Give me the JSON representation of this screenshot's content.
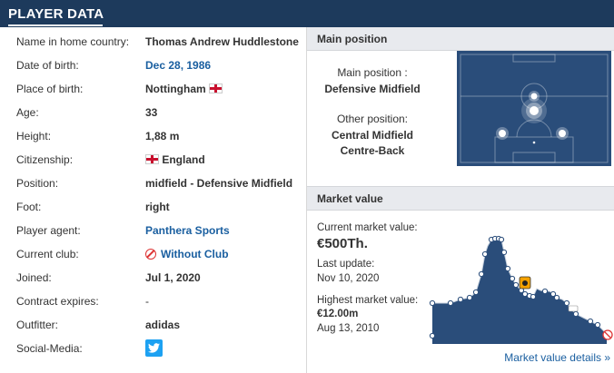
{
  "header": {
    "title": "PLAYER DATA"
  },
  "player_data": {
    "rows": [
      {
        "label": "Name in home country:",
        "value": "Thomas Andrew Huddlestone"
      },
      {
        "label": "Date of birth:",
        "value": "Dec 28, 1986"
      },
      {
        "label": "Place of birth:",
        "value": "Nottingham"
      },
      {
        "label": "Age:",
        "value": "33"
      },
      {
        "label": "Height:",
        "value": "1,88 m"
      },
      {
        "label": "Citizenship:",
        "value": "England"
      },
      {
        "label": "Position:",
        "value": "midfield - Defensive Midfield"
      },
      {
        "label": "Foot:",
        "value": "right"
      },
      {
        "label": "Player agent:",
        "value": "Panthera Sports"
      },
      {
        "label": "Current club:",
        "value": "Without Club"
      },
      {
        "label": "Joined:",
        "value": "Jul 1, 2020"
      },
      {
        "label": "Contract expires:",
        "value": "-"
      },
      {
        "label": "Outfitter:",
        "value": "adidas"
      },
      {
        "label": "Social-Media:",
        "value": ""
      }
    ]
  },
  "main_position": {
    "title": "Main position",
    "main_label": "Main position :",
    "main_value": "Defensive Midfield",
    "other_label": "Other position:",
    "other_values": [
      "Central Midfield",
      "Centre-Back"
    ]
  },
  "market_value": {
    "title": "Market value",
    "current_label": "Current market value:",
    "current_value": "€500Th.",
    "update_label": "Last update:",
    "update_value": "Nov 10, 2020",
    "highest_label": "Highest market value:",
    "highest_value": "€12.00m",
    "highest_date": "Aug 13, 2010",
    "details_link": "Market value details »"
  },
  "colors": {
    "header_bg": "#1d3a5c",
    "pitch": "#2a4d7a",
    "link": "#1a5fa0"
  },
  "icons": [
    "england-flag-icon",
    "no-club-icon",
    "twitter-icon"
  ]
}
